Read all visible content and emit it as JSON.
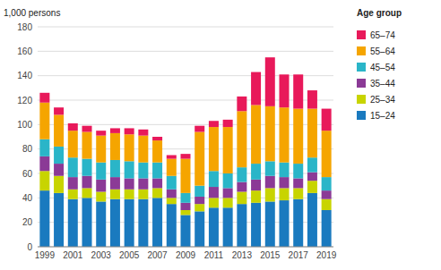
{
  "chart_data": {
    "type": "bar",
    "stacked": true,
    "ylabel": "1,000 persons",
    "legend_title": "Age group",
    "categories": [
      "1999",
      null,
      "2001",
      null,
      "2003",
      null,
      "2005",
      null,
      "2007",
      null,
      "2009",
      null,
      "2011",
      null,
      "2013",
      null,
      "2015",
      null,
      "2017",
      null,
      "2019"
    ],
    "series": [
      {
        "name": "15–24",
        "color": "#1a7abf",
        "values": [
          46,
          44,
          39,
          40,
          37,
          39,
          39,
          39,
          40,
          35,
          26,
          29,
          32,
          32,
          35,
          36,
          37,
          38,
          39,
          44,
          30
        ]
      },
      {
        "name": "25–34",
        "color": "#c8d400",
        "values": [
          16,
          14,
          8,
          8,
          8,
          8,
          8,
          8,
          8,
          5,
          4,
          6,
          8,
          8,
          10,
          10,
          11,
          10,
          9,
          10,
          9
        ]
      },
      {
        "name": "35–44",
        "color": "#8b3a96",
        "values": [
          12,
          10,
          10,
          10,
          10,
          10,
          9,
          9,
          8,
          7,
          6,
          6,
          9,
          8,
          8,
          9,
          10,
          9,
          8,
          7,
          7
        ]
      },
      {
        "name": "45–54",
        "color": "#2ab5c8",
        "values": [
          14,
          14,
          16,
          14,
          14,
          14,
          14,
          13,
          13,
          11,
          8,
          9,
          13,
          12,
          12,
          13,
          12,
          12,
          12,
          12,
          11
        ]
      },
      {
        "name": "55–64",
        "color": "#f5a500",
        "values": [
          30,
          26,
          22,
          22,
          22,
          22,
          22,
          22,
          18,
          14,
          28,
          44,
          36,
          38,
          46,
          48,
          45,
          45,
          45,
          40,
          38
        ]
      },
      {
        "name": "65–74",
        "color": "#e8195a",
        "values": [
          8,
          6,
          6,
          5,
          4,
          4,
          5,
          5,
          3,
          3,
          4,
          5,
          5,
          6,
          12,
          27,
          40,
          27,
          28,
          15,
          18
        ]
      }
    ],
    "ylim": [
      0,
      180
    ],
    "yticks": [
      0,
      20,
      40,
      60,
      80,
      100,
      120,
      140,
      160,
      180
    ],
    "grid": true,
    "legend": "right"
  }
}
